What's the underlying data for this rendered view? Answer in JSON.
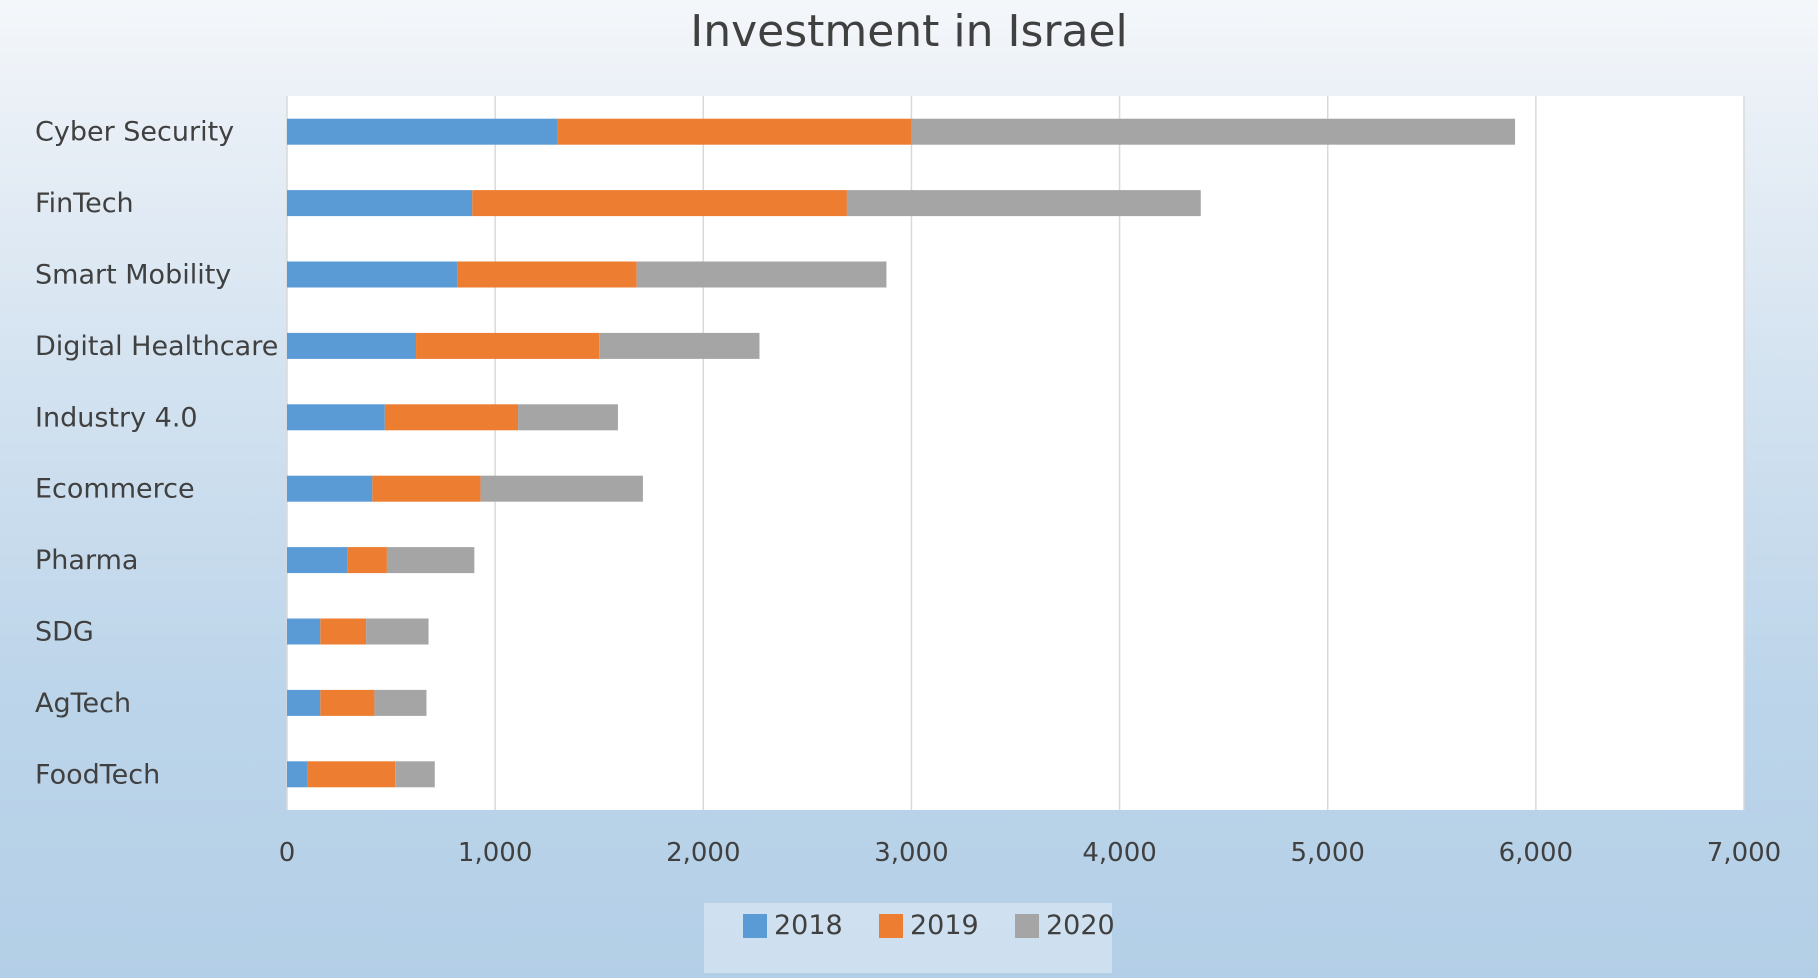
{
  "chart_data": {
    "type": "bar",
    "orientation": "horizontal",
    "stacked": true,
    "title": "Investment in Israel",
    "xlabel": "",
    "ylabel": "",
    "categories": [
      "Cyber Security",
      "FinTech",
      "Smart Mobility",
      "Digital Healthcare",
      "Industry 4.0",
      "Ecommerce",
      "Pharma",
      "SDG",
      "AgTech",
      "FoodTech"
    ],
    "series": [
      {
        "name": "2018",
        "color": "#5b9bd5",
        "values": [
          1300,
          890,
          820,
          620,
          470,
          410,
          290,
          160,
          160,
          100
        ]
      },
      {
        "name": "2019",
        "color": "#ed7d31",
        "values": [
          1700,
          1800,
          860,
          880,
          640,
          520,
          190,
          220,
          260,
          420
        ]
      },
      {
        "name": "2020",
        "color": "#a5a5a5",
        "values": [
          2900,
          1700,
          1200,
          770,
          480,
          780,
          420,
          300,
          250,
          190
        ]
      }
    ],
    "xlim": [
      0,
      7000
    ],
    "xticks": [
      0,
      1000,
      2000,
      3000,
      4000,
      5000,
      6000,
      7000
    ],
    "xtick_labels": [
      "0",
      "1,000",
      "2,000",
      "3,000",
      "4,000",
      "5,000",
      "6,000",
      "7,000"
    ],
    "grid": "vertical",
    "legend_position": "bottom"
  }
}
